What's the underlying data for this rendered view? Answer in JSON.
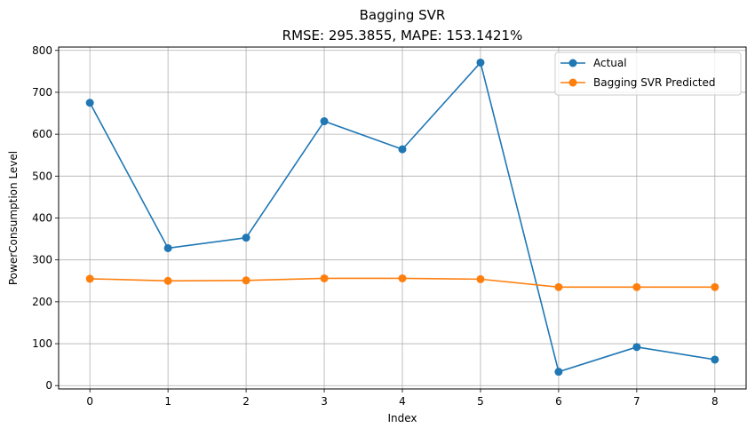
{
  "chart_data": {
    "type": "line",
    "title": "Bagging SVR",
    "subtitle": "RMSE: 295.3855, MAPE: 153.1421%",
    "xlabel": "Index",
    "ylabel": "PowerConsumption Level",
    "x": [
      0,
      1,
      2,
      3,
      4,
      5,
      6,
      7,
      8
    ],
    "xticks": [
      "0",
      "1",
      "2",
      "3",
      "4",
      "5",
      "6",
      "7",
      "8"
    ],
    "yticks": [
      "0",
      "100",
      "200",
      "300",
      "400",
      "500",
      "600",
      "700",
      "800"
    ],
    "ytick_values": [
      0,
      100,
      200,
      300,
      400,
      500,
      600,
      700,
      800
    ],
    "xlim": [
      -0.4,
      8.4
    ],
    "ylim": [
      -8,
      808
    ],
    "grid": true,
    "legend_position": "top-right",
    "series": [
      {
        "name": "Actual",
        "color": "#1f77b4",
        "marker": "circle",
        "values": [
          675,
          328,
          353,
          631,
          564,
          771,
          33,
          92,
          62
        ]
      },
      {
        "name": "Bagging SVR Predicted",
        "color": "#ff7f0e",
        "marker": "circle",
        "values": [
          255,
          250,
          251,
          256,
          256,
          254,
          235,
          235,
          235
        ]
      }
    ]
  }
}
